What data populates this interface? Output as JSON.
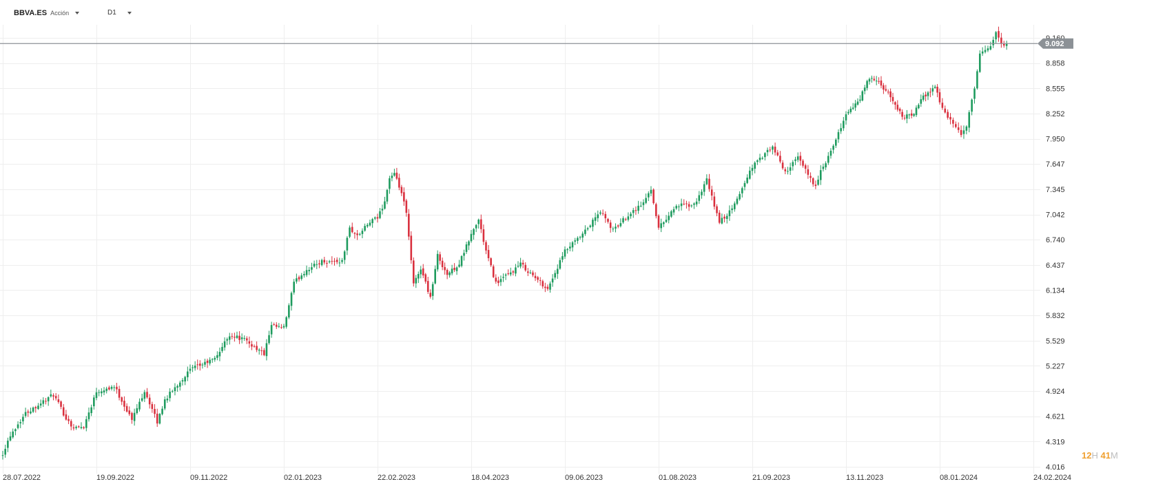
{
  "header": {
    "symbol": "BBVA.ES",
    "asset_type": "Acción",
    "timeframe": "D1"
  },
  "countdown": {
    "hours": "12",
    "hours_unit": "H",
    "minutes": "41",
    "minutes_unit": "M"
  },
  "colors": {
    "up": "#1e9b5e",
    "down": "#d9303e",
    "grid": "#eeeeee",
    "price_line": "#8c9196",
    "price_tag": "#8c9196",
    "axis_text": "#333333",
    "countdown": "#f0a030"
  },
  "chart_data": {
    "type": "candlestick",
    "title": "",
    "xlabel": "",
    "ylabel": "",
    "y_ticks": [
      "9.160",
      "8.858",
      "8.555",
      "8.252",
      "7.950",
      "7.647",
      "7.345",
      "7.042",
      "6.740",
      "6.437",
      "6.134",
      "5.832",
      "5.529",
      "5.227",
      "4.924",
      "4.621",
      "4.319",
      "4.016"
    ],
    "x_ticks": [
      "28.07.2022",
      "19.09.2022",
      "09.11.2022",
      "02.01.2023",
      "22.02.2023",
      "18.04.2023",
      "09.06.2023",
      "01.08.2023",
      "21.09.2023",
      "13.11.2023",
      "08.01.2024",
      "24.02.2024"
    ],
    "ylim": [
      4.016,
      9.16
    ],
    "last_price": "9.092",
    "anchors": [
      [
        "28.07.2022",
        4.18
      ],
      [
        "02.08.2022",
        4.4
      ],
      [
        "10.08.2022",
        4.66
      ],
      [
        "25.08.2022",
        4.88
      ],
      [
        "01.09.2022",
        4.6
      ],
      [
        "06.09.2022",
        4.48
      ],
      [
        "12.09.2022",
        4.5
      ],
      [
        "19.09.2022",
        4.92
      ],
      [
        "28.09.2022",
        4.98
      ],
      [
        "07.10.2022",
        4.58
      ],
      [
        "14.10.2022",
        4.93
      ],
      [
        "21.10.2022",
        4.55
      ],
      [
        "26.10.2022",
        4.82
      ],
      [
        "09.11.2022",
        5.18
      ],
      [
        "23.11.2022",
        5.31
      ],
      [
        "01.12.2022",
        5.6
      ],
      [
        "09.12.2022",
        5.54
      ],
      [
        "21.12.2022",
        5.37
      ],
      [
        "26.12.2022",
        5.7
      ],
      [
        "02.01.2023",
        5.68
      ],
      [
        "06.01.2023",
        6.22
      ],
      [
        "13.01.2023",
        6.38
      ],
      [
        "23.01.2023",
        6.48
      ],
      [
        "02.02.2023",
        6.48
      ],
      [
        "07.02.2023",
        6.88
      ],
      [
        "10.02.2023",
        6.78
      ],
      [
        "17.02.2023",
        6.95
      ],
      [
        "22.02.2023",
        7.0
      ],
      [
        "27.02.2023",
        7.2
      ],
      [
        "01.03.2023",
        7.48
      ],
      [
        "03.03.2023",
        7.52
      ],
      [
        "08.03.2023",
        7.3
      ],
      [
        "10.03.2023",
        7.05
      ],
      [
        "15.03.2023",
        6.2
      ],
      [
        "20.03.2023",
        6.4
      ],
      [
        "24.03.2023",
        6.05
      ],
      [
        "29.03.2023",
        6.55
      ],
      [
        "04.04.2023",
        6.32
      ],
      [
        "11.04.2023",
        6.45
      ],
      [
        "18.04.2023",
        6.8
      ],
      [
        "21.04.2023",
        6.98
      ],
      [
        "26.04.2023",
        6.6
      ],
      [
        "02.05.2023",
        6.22
      ],
      [
        "10.05.2023",
        6.34
      ],
      [
        "16.05.2023",
        6.45
      ],
      [
        "24.05.2023",
        6.28
      ],
      [
        "31.05.2023",
        6.15
      ],
      [
        "09.06.2023",
        6.6
      ],
      [
        "20.06.2023",
        6.8
      ],
      [
        "29.06.2023",
        7.08
      ],
      [
        "06.07.2023",
        6.85
      ],
      [
        "14.07.2023",
        7.04
      ],
      [
        "24.07.2023",
        7.18
      ],
      [
        "27.07.2023",
        7.35
      ],
      [
        "01.08.2023",
        6.88
      ],
      [
        "10.08.2023",
        7.15
      ],
      [
        "21.08.2023",
        7.15
      ],
      [
        "28.08.2023",
        7.45
      ],
      [
        "04.09.2023",
        6.95
      ],
      [
        "11.09.2023",
        7.1
      ],
      [
        "21.09.2023",
        7.62
      ],
      [
        "03.10.2023",
        7.85
      ],
      [
        "10.10.2023",
        7.55
      ],
      [
        "17.10.2023",
        7.72
      ],
      [
        "26.10.2023",
        7.38
      ],
      [
        "30.10.2023",
        7.55
      ],
      [
        "06.11.2023",
        7.85
      ],
      [
        "13.11.2023",
        8.25
      ],
      [
        "20.11.2023",
        8.38
      ],
      [
        "27.11.2023",
        8.68
      ],
      [
        "01.12.2023",
        8.62
      ],
      [
        "08.12.2023",
        8.45
      ],
      [
        "15.12.2023",
        8.22
      ],
      [
        "21.12.2023",
        8.22
      ],
      [
        "28.12.2023",
        8.45
      ],
      [
        "04.01.2024",
        8.58
      ],
      [
        "08.01.2024",
        8.4
      ],
      [
        "11.01.2024",
        8.2
      ],
      [
        "18.01.2024",
        8.0
      ],
      [
        "22.01.2024",
        8.1
      ],
      [
        "25.01.2024",
        8.55
      ],
      [
        "29.01.2024",
        8.95
      ],
      [
        "02.02.2024",
        9.08
      ],
      [
        "06.02.2024",
        9.22
      ],
      [
        "09.02.2024",
        9.05
      ],
      [
        "12.02.2024",
        9.09
      ]
    ]
  }
}
